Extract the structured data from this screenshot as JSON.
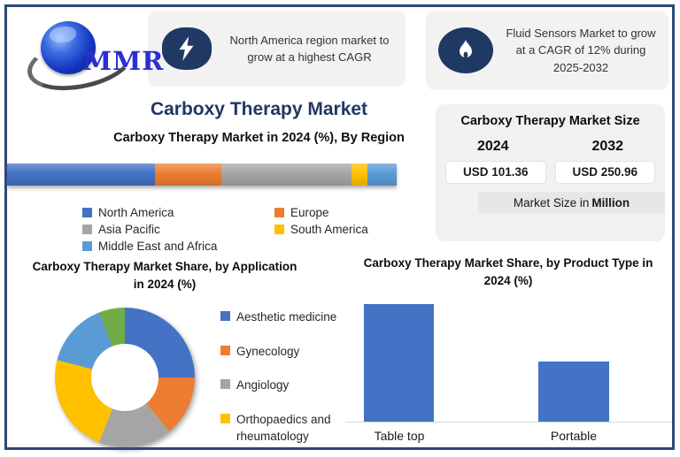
{
  "logo": {
    "text": "MMR"
  },
  "callouts": [
    {
      "icon": "lightning-icon",
      "text": "North America region market to grow at a highest CAGR"
    },
    {
      "icon": "flame-icon",
      "text": "Fluid Sensors Market to grow at a CAGR of 12% during 2025-2032"
    }
  ],
  "main_title": "Carboxy Therapy Market",
  "market_size_panel": {
    "title": "Carboxy Therapy Market Size",
    "years": [
      "2024",
      "2032"
    ],
    "values": [
      "USD 101.36",
      "USD 250.96"
    ],
    "footnote_prefix": "Market Size in",
    "footnote_bold": "Million",
    "value_color": "#2E75B6",
    "panel_bg": "#f1f1f1"
  },
  "theme": {
    "accent_navy": "#1f3864",
    "border_navy": "#2c4a74",
    "callout_bg": "#f2f2f2",
    "bar_blue": "#4472C4"
  },
  "chart_data": [
    {
      "type": "bar",
      "subtype": "horizontal-stacked-single-bar",
      "title": "Carboxy Therapy Market in 2024 (%), By Region",
      "categories": [
        "North America",
        "Europe",
        "Asia Pacific",
        "South America",
        "Middle East and Africa"
      ],
      "values": [
        38,
        17,
        33.5,
        4,
        7.5
      ],
      "colors": [
        "#4472C4",
        "#ED7D31",
        "#A5A5A5",
        "#FFC000",
        "#5B9BD5"
      ],
      "unit": "%",
      "legend_position": "bottom",
      "values_estimated_from_pixels": true
    },
    {
      "type": "pie",
      "subtype": "donut",
      "title": "Carboxy Therapy Market Share, by Application in 2024 (%)",
      "categories": [
        "Aesthetic medicine",
        "Gynecology",
        "Angiology",
        "Orthopaedics and rheumatology",
        "",
        ""
      ],
      "values": [
        25,
        14,
        17,
        23,
        15,
        6
      ],
      "colors": [
        "#4472C4",
        "#ED7D31",
        "#A5A5A5",
        "#FFC000",
        "#5B9BD5",
        "#70AD47"
      ],
      "unit": "%",
      "legend_position": "right",
      "legend_visible_entries": 4,
      "values_estimated_from_pixels": true
    },
    {
      "type": "bar",
      "subtype": "vertical",
      "title": "Carboxy Therapy Market Share, by Product Type in 2024 (%)",
      "categories": [
        "Table top",
        "Portable"
      ],
      "values": [
        65,
        33
      ],
      "colors": [
        "#4472C4",
        "#4472C4"
      ],
      "ylim": [
        0,
        100
      ],
      "unit": "%",
      "grid": false,
      "values_estimated_from_pixels": true
    }
  ]
}
